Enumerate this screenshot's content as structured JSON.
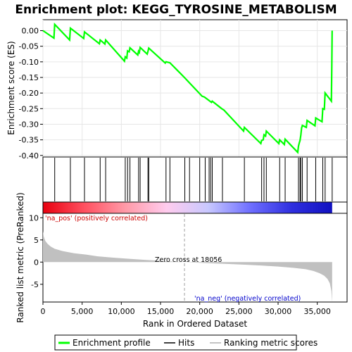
{
  "chart_data": {
    "type": "line",
    "title": "Enrichment plot: KEGG_TYROSINE_METABOLISM",
    "top_panel": {
      "ylabel": "Enrichment score (ES)",
      "ylim": [
        -0.405,
        0.035
      ],
      "yticks": [
        0.0,
        -0.05,
        -0.1,
        -0.15,
        -0.2,
        -0.25,
        -0.3,
        -0.35,
        -0.4
      ],
      "ytick_labels": [
        "0.00",
        "-0.05",
        "-0.10",
        "-0.15",
        "-0.20",
        "-0.25",
        "-0.30",
        "-0.35",
        "-0.40"
      ],
      "series": [
        {
          "name": "Enrichment profile",
          "color": "#00ff00",
          "points": [
            [
              0,
              0.0
            ],
            [
              1400,
              -0.024
            ],
            [
              1500,
              0.02
            ],
            [
              3400,
              -0.03
            ],
            [
              3500,
              0.008
            ],
            [
              5200,
              -0.025
            ],
            [
              5300,
              -0.004
            ],
            [
              7200,
              -0.042
            ],
            [
              7300,
              -0.03
            ],
            [
              7900,
              -0.043
            ],
            [
              8000,
              -0.03
            ],
            [
              10400,
              -0.098
            ],
            [
              10500,
              -0.084
            ],
            [
              10700,
              -0.088
            ],
            [
              10800,
              -0.065
            ],
            [
              11000,
              -0.068
            ],
            [
              11100,
              -0.055
            ],
            [
              12100,
              -0.078
            ],
            [
              12200,
              -0.066
            ],
            [
              12300,
              -0.07
            ],
            [
              12400,
              -0.054
            ],
            [
              13300,
              -0.075
            ],
            [
              13400,
              -0.066
            ],
            [
              13500,
              -0.056
            ],
            [
              15600,
              -0.104
            ],
            [
              15700,
              -0.1
            ],
            [
              16200,
              -0.103
            ],
            [
              18000,
              -0.149
            ],
            [
              20300,
              -0.21
            ],
            [
              20600,
              -0.213
            ],
            [
              21500,
              -0.23
            ],
            [
              21600,
              -0.226
            ],
            [
              22800,
              -0.25
            ],
            [
              23100,
              -0.255
            ],
            [
              25600,
              -0.322
            ],
            [
              25700,
              -0.31
            ],
            [
              27800,
              -0.362
            ],
            [
              27900,
              -0.352
            ],
            [
              28100,
              -0.35
            ],
            [
              28200,
              -0.334
            ],
            [
              28400,
              -0.338
            ],
            [
              28500,
              -0.322
            ],
            [
              30100,
              -0.362
            ],
            [
              30200,
              -0.35
            ],
            [
              30800,
              -0.365
            ],
            [
              30900,
              -0.348
            ],
            [
              32500,
              -0.39
            ],
            [
              32600,
              -0.37
            ],
            [
              32700,
              -0.36
            ],
            [
              32800,
              -0.352
            ],
            [
              32900,
              -0.335
            ],
            [
              33000,
              -0.312
            ],
            [
              33100,
              -0.304
            ],
            [
              33600,
              -0.31
            ],
            [
              33700,
              -0.288
            ],
            [
              34700,
              -0.305
            ],
            [
              34800,
              -0.28
            ],
            [
              35600,
              -0.292
            ],
            [
              35700,
              -0.25
            ],
            [
              35900,
              -0.252
            ],
            [
              36000,
              -0.2
            ],
            [
              36800,
              -0.226
            ],
            [
              36850,
              -0.118
            ],
            [
              36900,
              0.0
            ]
          ]
        }
      ]
    },
    "hits": [
      1500,
      3500,
      5300,
      7300,
      8000,
      10500,
      10800,
      11100,
      12200,
      12400,
      13400,
      13500,
      15700,
      16200,
      18100,
      18700,
      20000,
      20700,
      21200,
      21400,
      21600,
      22900,
      25700,
      27900,
      28200,
      28500,
      30200,
      30900,
      32600,
      32800,
      32900,
      33100,
      33700,
      34800,
      35700,
      36000,
      36900
    ],
    "heatmap": {
      "gradient": [
        "#e8000f",
        "#ff5060",
        "#ff9aa8",
        "#ffccee",
        "#c8c8ff",
        "#7070ff",
        "#3030e0",
        "#1010c0"
      ]
    },
    "bottom_panel": {
      "ylabel": "Ranked list metric (PreRanked)",
      "ylim": [
        -9,
        11
      ],
      "yticks": [
        10,
        5,
        0,
        -5
      ],
      "ytick_labels": [
        "10",
        "5",
        "0",
        "-5"
      ],
      "metric_profile": [
        [
          0,
          7.0
        ],
        [
          100,
          5.8
        ],
        [
          300,
          4.8
        ],
        [
          600,
          4.1
        ],
        [
          1000,
          3.5
        ],
        [
          1500,
          3.0
        ],
        [
          2500,
          2.5
        ],
        [
          4000,
          2.0
        ],
        [
          5500,
          1.7
        ],
        [
          7000,
          1.3
        ],
        [
          9000,
          1.0
        ],
        [
          11000,
          0.75
        ],
        [
          13000,
          0.5
        ],
        [
          15000,
          0.3
        ],
        [
          17000,
          0.1
        ],
        [
          18056,
          0.0
        ],
        [
          20000,
          -0.15
        ],
        [
          22000,
          -0.3
        ],
        [
          24000,
          -0.45
        ],
        [
          26000,
          -0.6
        ],
        [
          28000,
          -0.8
        ],
        [
          30000,
          -1.0
        ],
        [
          32000,
          -1.3
        ],
        [
          33500,
          -1.6
        ],
        [
          34500,
          -2.0
        ],
        [
          35300,
          -2.5
        ],
        [
          35900,
          -3.1
        ],
        [
          36300,
          -3.8
        ],
        [
          36600,
          -4.8
        ],
        [
          36800,
          -6.5
        ],
        [
          36900,
          -9.0
        ]
      ],
      "pos_label": "'na_pos' (positively correlated)",
      "neg_label": "'na_neg' (negatively correlated)",
      "zero_cross_label": "Zero cross at 18056",
      "zero_cross": 18056
    },
    "xlabel": "Rank in Ordered Dataset",
    "xlim": [
      0,
      38800
    ],
    "xticks": [
      0,
      5000,
      10000,
      15000,
      20000,
      25000,
      30000,
      35000
    ],
    "xtick_labels": [
      "0",
      "5,000",
      "10,000",
      "15,000",
      "20,000",
      "25,000",
      "30,000",
      "35,000"
    ],
    "legend": {
      "placement": "bottom",
      "entries": [
        "Enrichment profile",
        "Hits",
        "Ranking metric scores"
      ]
    }
  }
}
